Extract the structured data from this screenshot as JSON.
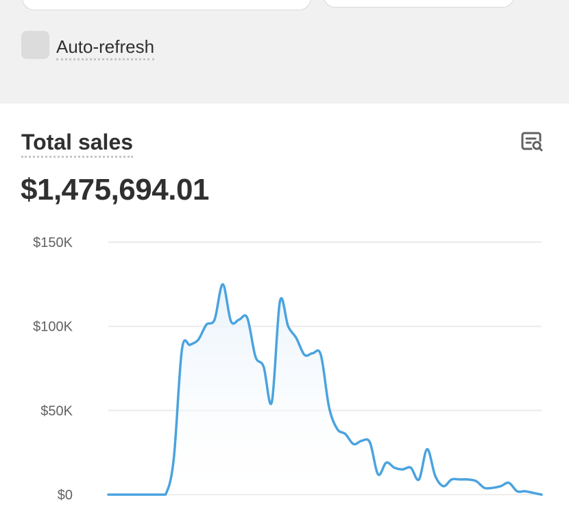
{
  "filters": {
    "date_range_value": "",
    "comparison_value": ""
  },
  "auto_refresh": {
    "label": "Auto-refresh",
    "checked": false
  },
  "card": {
    "title": "Total sales",
    "total_value": "$1,475,694.01",
    "icon": "chart-analysis-icon"
  },
  "colors": {
    "line": "#4aa3df",
    "fill_top": "#e8f2fb",
    "grid": "#ebebeb",
    "panel_bg": "#f1f1f1"
  },
  "chart_data": {
    "type": "area",
    "title": "",
    "xlabel": "",
    "ylabel": "",
    "y_ticks": [
      "$0",
      "$50K",
      "$100K",
      "$150K"
    ],
    "y_tick_values": [
      0,
      50000,
      100000,
      150000
    ],
    "ylim": [
      0,
      150000
    ],
    "grid": true,
    "series": [
      {
        "values": [
          0,
          0,
          0,
          0,
          0,
          0,
          0,
          0,
          21000,
          86000,
          89000,
          92000,
          101000,
          104000,
          125000,
          103000,
          104000,
          105000,
          82000,
          76000,
          55000,
          115000,
          100000,
          93000,
          83000,
          84000,
          83000,
          52000,
          39000,
          36000,
          30000,
          32000,
          31000,
          12000,
          19000,
          16000,
          15000,
          16000,
          9000,
          27000,
          11000,
          5000,
          9000,
          9000,
          9000,
          8000,
          4000,
          4000,
          5000,
          7000,
          2000,
          2000,
          1000,
          0
        ]
      }
    ]
  }
}
